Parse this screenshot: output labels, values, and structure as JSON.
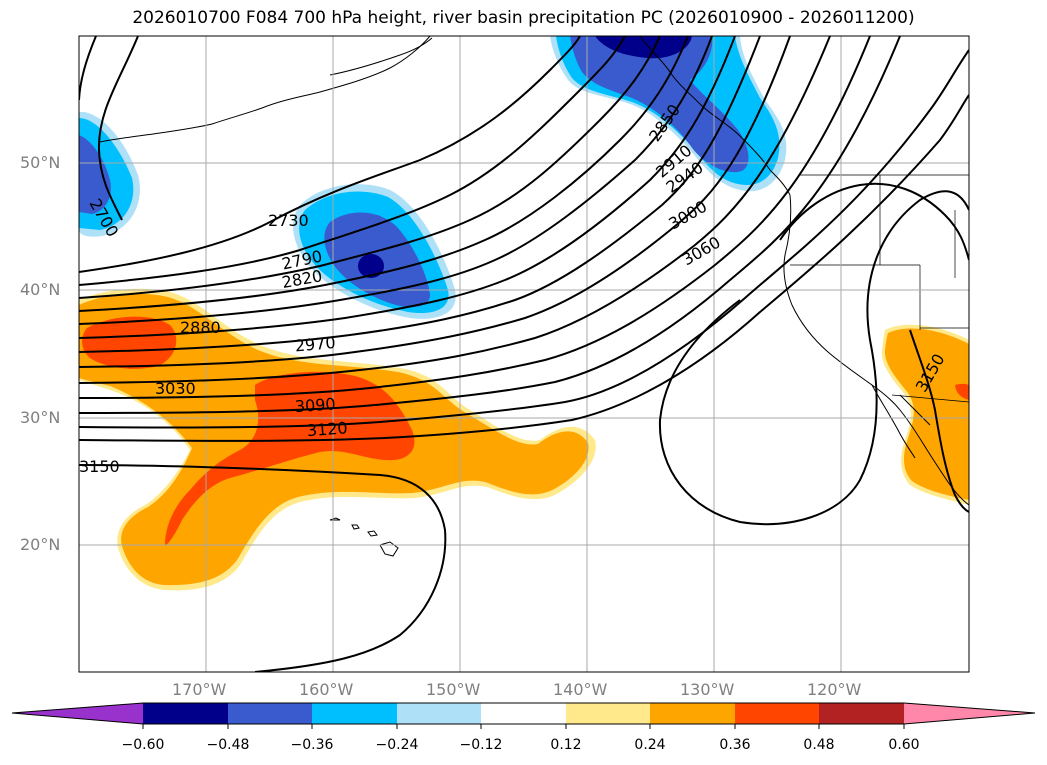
{
  "title": "2026010700 F084 700 hPa height, river basin precipitation PC (2026010900 - 2026011200)",
  "lat_labels": [
    "50°N",
    "40°N",
    "30°N",
    "20°N"
  ],
  "lon_labels": [
    "170°W",
    "160°W",
    "150°W",
    "140°W",
    "130°W",
    "120°W"
  ],
  "contour_labels": [
    "2700",
    "2730",
    "2790",
    "2820",
    "2880",
    "2970",
    "3030",
    "3090",
    "3120",
    "3150",
    "2850",
    "2910",
    "2940",
    "3000",
    "3060",
    "3150"
  ],
  "colorbar": {
    "ticks": [
      "−0.60",
      "−0.48",
      "−0.36",
      "−0.24",
      "−0.12",
      "0.12",
      "0.24",
      "0.36",
      "0.48",
      "0.60"
    ],
    "colors": [
      "#9932cc",
      "#00008b",
      "#3a5bcd",
      "#00bfff",
      "#aee1f8",
      "#ffffff",
      "#ffe98a",
      "#ffa500",
      "#ff4500",
      "#b22222",
      "#ff88aa"
    ]
  },
  "colors": {
    "ocean": "#ffffff",
    "land": "#ffffff",
    "contour": "#000000",
    "grid": "#a9a9a9"
  }
}
